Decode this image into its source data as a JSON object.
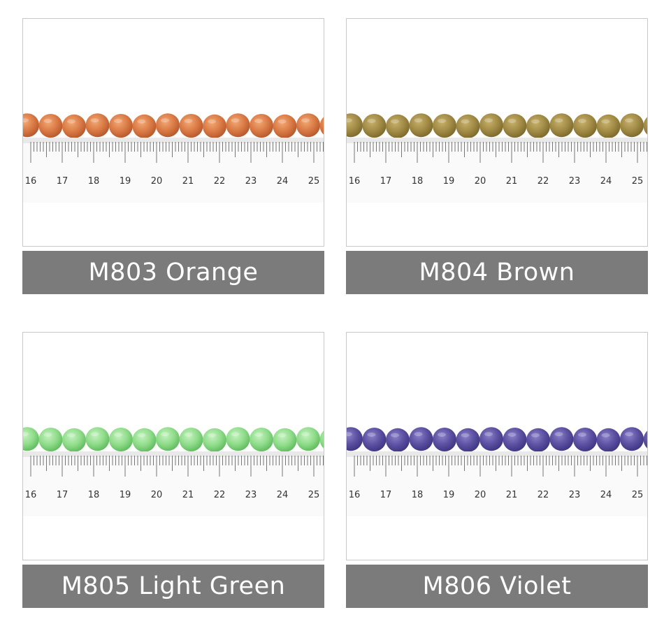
{
  "products": [
    {
      "label": "M803 Orange",
      "bead_color": "#d97a45",
      "bead_shade": "#b4552a",
      "bead_highlight": "#f3a874",
      "ruler_numbers": [
        "16",
        "17",
        "18",
        "19",
        "20",
        "21",
        "22",
        "23",
        "24",
        "25"
      ]
    },
    {
      "label": "M804 Brown",
      "bead_color": "#a08a45",
      "bead_shade": "#7a6628",
      "bead_highlight": "#c6b06a",
      "ruler_numbers": [
        "16",
        "17",
        "18",
        "19",
        "20",
        "21",
        "22",
        "23",
        "24",
        "25"
      ]
    },
    {
      "label": "M805 Light Green",
      "bead_color": "#8fdc8a",
      "bead_shade": "#5cb85a",
      "bead_highlight": "#c4f2bf",
      "ruler_numbers": [
        "16",
        "17",
        "18",
        "19",
        "20",
        "21",
        "22",
        "23",
        "24",
        "25"
      ]
    },
    {
      "label": "M806 Violet",
      "bead_color": "#5a4fa0",
      "bead_shade": "#3b3380",
      "bead_highlight": "#8a80c8",
      "ruler_numbers": [
        "16",
        "17",
        "18",
        "19",
        "20",
        "21",
        "22",
        "23",
        "24",
        "25"
      ]
    }
  ]
}
